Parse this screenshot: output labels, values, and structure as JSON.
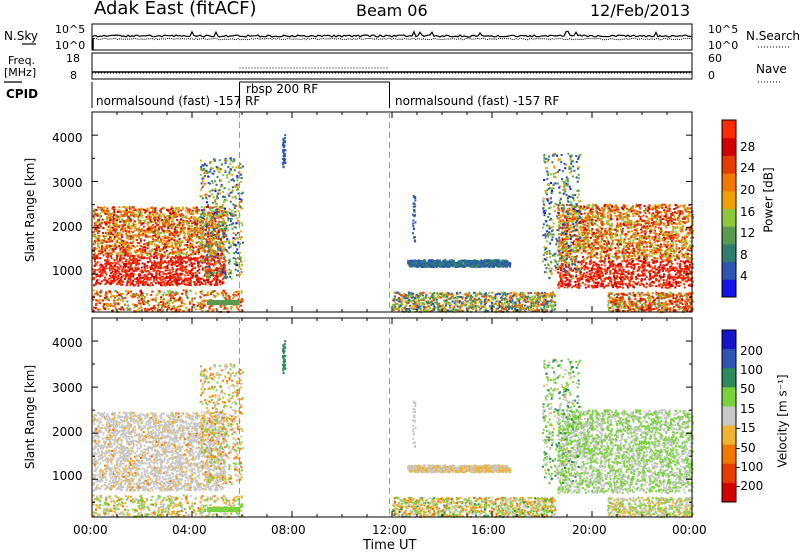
{
  "header": {
    "station": "Adak East (fitACF)",
    "beam": "Beam 06",
    "date": "12/Feb/2013"
  },
  "noise_panel": {
    "left_label": "N.Sky",
    "left_ticks": [
      "10^5",
      "10^0"
    ],
    "right_ticks": [
      "10^5",
      "10^0"
    ],
    "right_label": "N.Search"
  },
  "freq_panel": {
    "left_label_1": "Freq.",
    "left_label_2": "[MHz]",
    "left_ticks": [
      "18",
      "8"
    ],
    "right_ticks": [
      "60",
      "0"
    ],
    "right_label": "Nave"
  },
  "cpid_panel": {
    "label": "CPID",
    "segments": [
      "normalsound (fast) -157 RF",
      "rbsp 200 RF",
      "normalsound (fast) -157 RF"
    ]
  },
  "x_axis": {
    "ticks": [
      "00:00",
      "04:00",
      "08:00",
      "12:00",
      "16:00",
      "20:00",
      "00:00"
    ],
    "label": "Time UT"
  },
  "power_panel": {
    "ylabel": "Slant Range [km]",
    "y_ticks": [
      "1000",
      "2000",
      "3000",
      "4000"
    ],
    "colorbar_label": "Power [dB]",
    "colorbar_ticks": [
      "4",
      "8",
      "12",
      "16",
      "20",
      "24",
      "28"
    ],
    "colors": [
      "#1414e6",
      "#2d55b4",
      "#2e7d6e",
      "#5a9a50",
      "#8cc83c",
      "#f0a000",
      "#f07800",
      "#e63c00",
      "#d20000",
      "#ff2a00"
    ]
  },
  "velocity_panel": {
    "ylabel": "Slant Range [km]",
    "y_ticks": [
      "1000",
      "2000",
      "3000",
      "4000"
    ],
    "colorbar_label": "Velocity [m s⁻¹]",
    "colorbar_ticks": [
      "200",
      "100",
      "50",
      "15",
      "-15",
      "-50",
      "-100",
      "-200"
    ],
    "colors": [
      "#1414c8",
      "#2d55b4",
      "#2e8a5a",
      "#7ad23c",
      "#c8c8c8",
      "#f0b432",
      "#f07800",
      "#e63c00",
      "#d20000"
    ]
  },
  "chart_data": [
    {
      "type": "heatmap",
      "title": "Power",
      "x_label": "Time UT",
      "y_label": "Slant Range [km]",
      "x_range_hours": [
        0,
        24
      ],
      "y_range_km": [
        180,
        4500
      ],
      "colorbar": {
        "label": "Power [dB]",
        "range": [
          0,
          30
        ]
      },
      "features": [
        {
          "time_hours": [
            0,
            5.8
          ],
          "range_km": [
            700,
            2500
          ],
          "value_db": [
            14,
            28
          ]
        },
        {
          "time_hours": [
            12.6,
            16.7
          ],
          "range_km": [
            1150,
            1300
          ],
          "value_db": [
            4,
            8
          ]
        },
        {
          "time_hours": [
            18.6,
            24
          ],
          "range_km": [
            700,
            2500
          ],
          "value_db": [
            14,
            28
          ]
        }
      ]
    },
    {
      "type": "heatmap",
      "title": "Velocity",
      "x_label": "Time UT",
      "y_label": "Slant Range [km]",
      "x_range_hours": [
        0,
        24
      ],
      "y_range_km": [
        180,
        4500
      ],
      "colorbar": {
        "label": "Velocity [m s-1]",
        "range": [
          -250,
          250
        ]
      },
      "features": [
        {
          "time_hours": [
            0,
            5.8
          ],
          "range_km": [
            700,
            2500
          ],
          "value_ms": [
            -50,
            15
          ]
        },
        {
          "time_hours": [
            12.6,
            16.7
          ],
          "range_km": [
            1150,
            1300
          ],
          "value_ms": [
            -50,
            15
          ]
        },
        {
          "time_hours": [
            18.6,
            24
          ],
          "range_km": [
            700,
            2500
          ],
          "value_ms": [
            15,
            50
          ]
        }
      ]
    }
  ]
}
